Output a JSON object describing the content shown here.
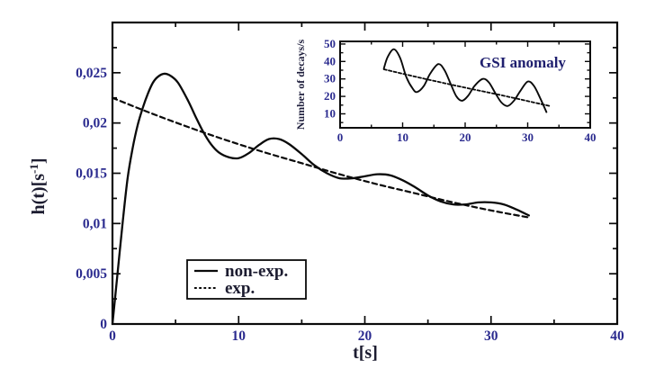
{
  "colors": {
    "background": "#ffffff",
    "curve": "#0a0a0a",
    "frame": "#0a0a0a",
    "tick_label": "#2b2b8f",
    "axis_label": "#1c1c30",
    "legend_text": "#1c1c30",
    "annotation": "#1f1f6e",
    "inset_ylabel": "#1e1e3c"
  },
  "chart_data": [
    {
      "id": "main",
      "type": "line",
      "title": "",
      "xlabel": "t[s]",
      "ylabel": "h(t)[s⁻¹]",
      "ylabel_parts": {
        "pre": "h(t)[s",
        "sup": "-1",
        "post": "]"
      },
      "xlim": [
        0,
        40
      ],
      "ylim": [
        0,
        0.03
      ],
      "grid": false,
      "x_ticks": {
        "values": [
          0,
          10,
          20,
          30,
          40
        ],
        "labels": [
          "0",
          "10",
          "20",
          "30",
          "40"
        ],
        "minor": [
          5,
          15,
          25,
          35
        ]
      },
      "y_ticks": {
        "values": [
          0,
          0.005,
          0.01,
          0.015,
          0.02,
          0.025
        ],
        "labels": [
          "0",
          "0,005",
          "0,01",
          "0,015",
          "0,02",
          "0,025"
        ],
        "minor": [
          0.0025,
          0.0075,
          0.0125,
          0.0175,
          0.0225,
          0.0275
        ]
      },
      "legend": {
        "position": "inside-bottom-center",
        "entries": [
          "non-exp.",
          "exp."
        ]
      },
      "series": [
        {
          "name": "non-exp.",
          "style": "solid",
          "points": [
            [
              0,
              0
            ],
            [
              0.4,
              0.005
            ],
            [
              0.8,
              0.01
            ],
            [
              1.2,
              0.0145
            ],
            [
              1.6,
              0.0175
            ],
            [
              2.0,
              0.0198
            ],
            [
              2.4,
              0.0215
            ],
            [
              2.8,
              0.0229
            ],
            [
              3.2,
              0.024
            ],
            [
              3.6,
              0.0246
            ],
            [
              4.1,
              0.0249
            ],
            [
              4.6,
              0.0247
            ],
            [
              5.2,
              0.024
            ],
            [
              6,
              0.0222
            ],
            [
              6.6,
              0.0206
            ],
            [
              7.2,
              0.0191
            ],
            [
              7.8,
              0.0179
            ],
            [
              8.4,
              0.0171
            ],
            [
              9.2,
              0.0166
            ],
            [
              10,
              0.0165
            ],
            [
              10.8,
              0.017
            ],
            [
              11.6,
              0.0178
            ],
            [
              12.4,
              0.0184
            ],
            [
              13.2,
              0.0184
            ],
            [
              14,
              0.0179
            ],
            [
              15,
              0.0169
            ],
            [
              16,
              0.0158
            ],
            [
              17,
              0.015
            ],
            [
              18,
              0.0145
            ],
            [
              19,
              0.0145
            ],
            [
              20,
              0.0147
            ],
            [
              21,
              0.0149
            ],
            [
              22,
              0.0148
            ],
            [
              23,
              0.0143
            ],
            [
              24,
              0.0136
            ],
            [
              25,
              0.0128
            ],
            [
              26,
              0.0122
            ],
            [
              27,
              0.0119
            ],
            [
              28,
              0.0119
            ],
            [
              29,
              0.0121
            ],
            [
              30,
              0.0121
            ],
            [
              31,
              0.0119
            ],
            [
              32,
              0.0114
            ],
            [
              33,
              0.0108
            ]
          ]
        },
        {
          "name": "exp.",
          "style": "dashed",
          "points": [
            [
              0,
              0.0225
            ],
            [
              3,
              0.021
            ],
            [
              6,
              0.0196
            ],
            [
              9,
              0.0183
            ],
            [
              12,
              0.0171
            ],
            [
              15,
              0.016
            ],
            [
              18,
              0.0149
            ],
            [
              21,
              0.0139
            ],
            [
              24,
              0.013
            ],
            [
              27,
              0.0121
            ],
            [
              30,
              0.0113
            ],
            [
              33,
              0.0106
            ]
          ]
        }
      ]
    },
    {
      "id": "inset",
      "type": "line",
      "title": "",
      "annotation": "GSI anomaly",
      "xlabel": "",
      "ylabel": "Number of decays/s",
      "xlim": [
        0,
        40
      ],
      "ylim": [
        2,
        51.5
      ],
      "grid": false,
      "x_ticks": {
        "values": [
          0,
          10,
          20,
          30,
          40
        ],
        "labels": [
          "0",
          "10",
          "20",
          "30",
          "40"
        ],
        "minor": [
          5,
          15,
          25,
          35
        ]
      },
      "y_ticks": {
        "values": [
          10,
          20,
          30,
          40,
          50
        ],
        "labels": [
          "10",
          "20",
          "30",
          "40",
          "50"
        ],
        "minor": [
          5,
          15,
          25,
          35,
          45
        ]
      },
      "series": [
        {
          "id": "oscillation",
          "style": "solid",
          "points": [
            [
              7,
              36
            ],
            [
              7.6,
              42.5
            ],
            [
              8.6,
              47
            ],
            [
              9.6,
              42
            ],
            [
              10.6,
              31
            ],
            [
              11.6,
              24.5
            ],
            [
              12.3,
              22.5
            ],
            [
              13.4,
              26
            ],
            [
              14.4,
              33
            ],
            [
              15.7,
              38.5
            ],
            [
              16.7,
              35
            ],
            [
              17.7,
              27
            ],
            [
              18.6,
              20
            ],
            [
              19.5,
              17.5
            ],
            [
              20.5,
              20.5
            ],
            [
              21.5,
              26
            ],
            [
              22.8,
              30
            ],
            [
              23.8,
              28
            ],
            [
              24.8,
              22
            ],
            [
              25.8,
              16.5
            ],
            [
              26.8,
              14.5
            ],
            [
              27.8,
              17.5
            ],
            [
              28.8,
              23
            ],
            [
              30,
              28.5
            ],
            [
              31,
              26
            ],
            [
              32,
              19
            ],
            [
              33,
              11
            ]
          ]
        },
        {
          "id": "trend",
          "style": "dashed",
          "points": [
            [
              7,
              35.5
            ],
            [
              13,
              30.5
            ],
            [
              20,
              25
            ],
            [
              26,
              20.5
            ],
            [
              33.5,
              14.5
            ]
          ]
        }
      ]
    }
  ]
}
